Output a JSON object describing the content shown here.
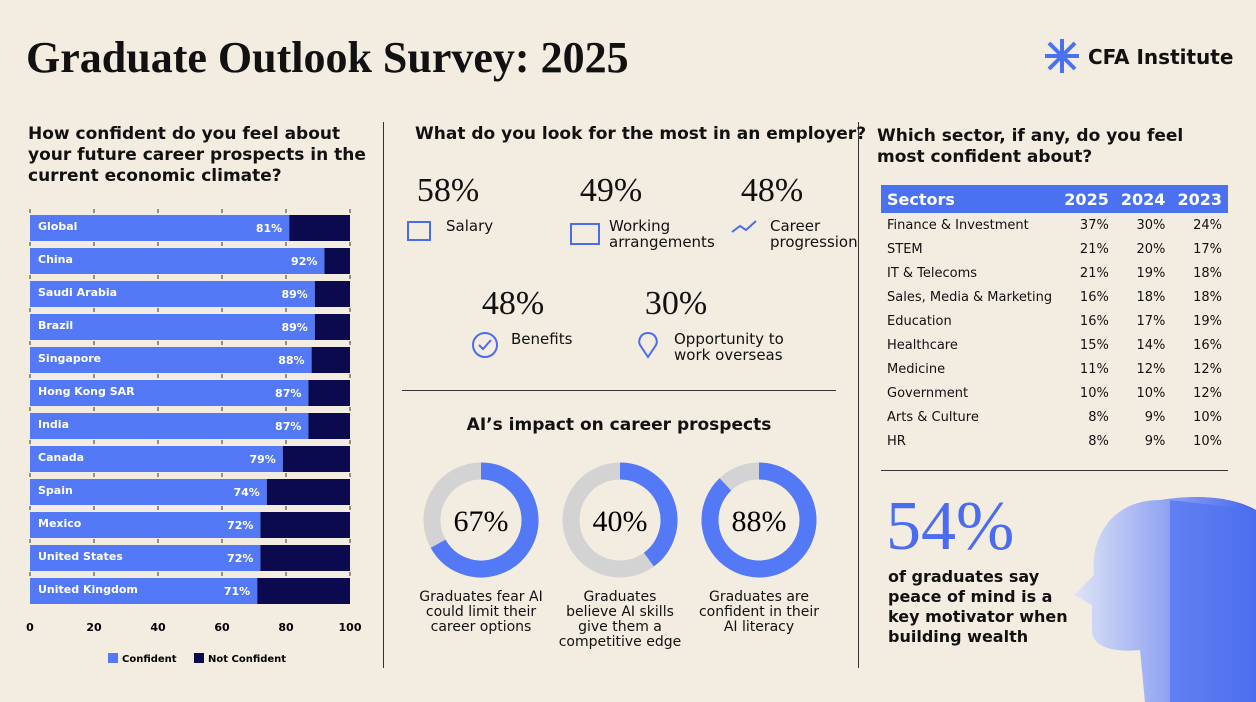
{
  "header": {
    "title": "Graduate Outlook Survey: 2025",
    "logo": "CFA Institute"
  },
  "confidence": {
    "question": "How confident do you feel about your future career prospects in the current economic climate?"
  },
  "chart_data": [
    {
      "type": "bar",
      "orientation": "horizontal",
      "stacked": true,
      "categories": [
        "Global",
        "China",
        "Saudi Arabia",
        "Brazil",
        "Singapore",
        "Hong Kong SAR",
        "India",
        "Canada",
        "Spain",
        "Mexico",
        "United States",
        "United Kingdom"
      ],
      "series": [
        {
          "name": "Confident",
          "color": "#5479f7",
          "values": [
            81,
            92,
            89,
            89,
            88,
            87,
            87,
            79,
            74,
            72,
            72,
            71
          ],
          "value_labels": [
            "81%",
            "92%",
            "89%",
            "89%",
            "88%",
            "87%",
            "87%",
            "79%",
            "74%",
            "72%",
            "72%",
            "71%"
          ]
        },
        {
          "name": "Not Confident",
          "color": "#0b0a4e",
          "values": [
            19,
            8,
            11,
            11,
            12,
            13,
            13,
            21,
            26,
            28,
            28,
            29
          ]
        }
      ],
      "xlim": [
        0,
        100
      ],
      "xticks": [
        0,
        20,
        40,
        60,
        80,
        100
      ],
      "legend": "bottom"
    },
    {
      "type": "donut",
      "values": [
        67,
        33
      ],
      "value_labels": [
        "67%",
        null
      ],
      "colors": [
        "#5479f7",
        "#d3d3d3"
      ],
      "caption": "Graduates fear AI could limit their career options"
    },
    {
      "type": "donut",
      "values": [
        40,
        60
      ],
      "value_labels": [
        "40%",
        null
      ],
      "colors": [
        "#5479f7",
        "#d3d3d3"
      ],
      "caption": "Graduates believe AI skills give them a competitive edge"
    },
    {
      "type": "donut",
      "values": [
        88,
        12
      ],
      "value_labels": [
        "88%",
        null
      ],
      "colors": [
        "#5479f7",
        "#d3d3d3"
      ],
      "caption": "Graduates are confident in their AI literacy"
    }
  ],
  "employer": {
    "question": "What do you look for the most in an employer?",
    "items": [
      {
        "value": "58%",
        "label": "Salary"
      },
      {
        "value": "49%",
        "label": "Working arrangements"
      },
      {
        "value": "48%",
        "label": "Career progression"
      },
      {
        "value": "48%",
        "label": "Benefits"
      },
      {
        "value": "30%",
        "label": "Opportunity to work overseas"
      }
    ]
  },
  "ai": {
    "title": "AI’s impact on career prospects"
  },
  "sectors": {
    "question": "Which sector, if any, do you feel most confident about?",
    "header": [
      "Sectors",
      "2025",
      "2024",
      "2023"
    ],
    "rows": [
      [
        "Finance & Investment",
        "37%",
        "30%",
        "24%"
      ],
      [
        "STEM",
        "21%",
        "20%",
        "17%"
      ],
      [
        "IT & Telecoms",
        "21%",
        "19%",
        "18%"
      ],
      [
        "Sales, Media & Marketing",
        "16%",
        "18%",
        "18%"
      ],
      [
        "Education",
        "16%",
        "17%",
        "19%"
      ],
      [
        "Healthcare",
        "15%",
        "14%",
        "16%"
      ],
      [
        "Medicine",
        "11%",
        "12%",
        "12%"
      ],
      [
        "Government",
        "10%",
        "10%",
        "12%"
      ],
      [
        "Arts & Culture",
        "8%",
        "9%",
        "10%"
      ],
      [
        "HR",
        "8%",
        "9%",
        "10%"
      ]
    ]
  },
  "stat": {
    "value": "54%",
    "text": "of graduates say peace of mind is a key motivator when building wealth"
  }
}
